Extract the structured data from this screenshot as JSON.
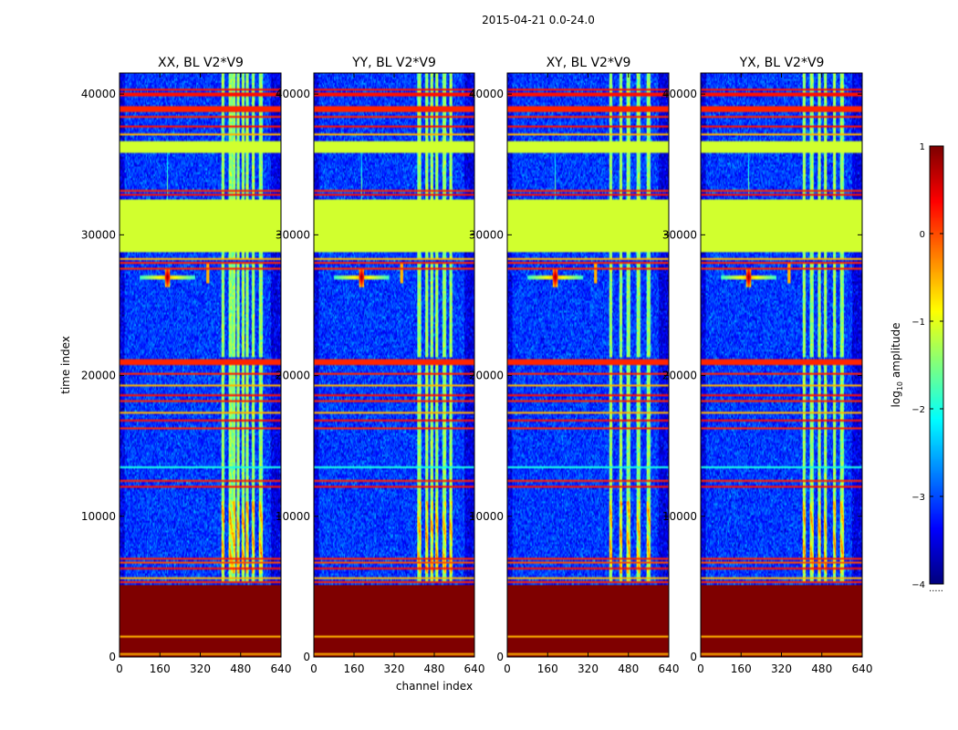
{
  "figure": {
    "suptitle": "2015-04-21 0.0-24.0",
    "xlabel": "channel index",
    "ylabel": "time index"
  },
  "chart_data": [
    {
      "type": "heatmap",
      "title": "XX, BL V2*V9",
      "xlabel": "channel index",
      "ylabel": "time index",
      "xlim": [
        0,
        640
      ],
      "ylim": [
        0,
        41500
      ],
      "xticks": [
        "0",
        "160",
        "320",
        "480",
        "640"
      ],
      "yticks": [
        "0",
        "10000",
        "20000",
        "30000",
        "40000"
      ],
      "strong_channels": [
        410,
        440,
        455,
        470,
        490,
        505,
        530,
        560
      ],
      "ytick_labels_shown": true
    },
    {
      "type": "heatmap",
      "title": "YY, BL V2*V9",
      "xlabel": "channel index",
      "ylabel": "time index",
      "xlim": [
        0,
        640
      ],
      "ylim": [
        0,
        41500
      ],
      "xticks": [
        "0",
        "160",
        "320",
        "480",
        "640"
      ],
      "yticks": [
        "0",
        "10000",
        "20000",
        "30000",
        "40000"
      ],
      "strong_channels": [
        420,
        450,
        470,
        490,
        520,
        545
      ],
      "ytick_labels_shown": true
    },
    {
      "type": "heatmap",
      "title": "XY, BL V2*V9",
      "xlabel": "channel index",
      "ylabel": "time index",
      "xlim": [
        0,
        640
      ],
      "ylim": [
        0,
        41500
      ],
      "xticks": [
        "0",
        "160",
        "320",
        "480",
        "640"
      ],
      "yticks": [
        "0",
        "10000",
        "20000",
        "30000",
        "40000"
      ],
      "strong_channels": [
        410,
        450,
        480,
        520,
        560
      ],
      "ytick_labels_shown": true
    },
    {
      "type": "heatmap",
      "title": "YX, BL V2*V9",
      "xlabel": "channel index",
      "ylabel": "time index",
      "xlim": [
        0,
        640
      ],
      "ylim": [
        0,
        41500
      ],
      "xticks": [
        "0",
        "160",
        "320",
        "480",
        "640"
      ],
      "yticks": [
        "0",
        "10000",
        "20000",
        "30000",
        "40000"
      ],
      "strong_channels": [
        410,
        440,
        470,
        495,
        530,
        560
      ],
      "ytick_labels_shown": true
    }
  ],
  "shared_features": {
    "background_log10": -3.1,
    "flagged_bottom_range": [
      0,
      5100
    ],
    "flagged_bottom_log10": 1.0,
    "bottom_lines": [
      {
        "t": 200,
        "v": -0.5
      },
      {
        "t": 1500,
        "v": -0.5
      }
    ],
    "green_blocks": [
      {
        "t0": 28800,
        "t1": 32500,
        "v": -1.1
      },
      {
        "t0": 35800,
        "t1": 36600,
        "v": -1.1
      }
    ],
    "hline_bands": [
      {
        "t0": 20700,
        "t1": 21200,
        "v": 0.2
      },
      {
        "t0": 38800,
        "t1": 39100,
        "v": 0.2
      },
      {
        "t0": 39900,
        "t1": 40100,
        "v": 0.3
      },
      {
        "t0": 40300,
        "t1": 40400,
        "v": 0.3
      }
    ],
    "hlines": [
      {
        "t": 5300,
        "v": 0.2
      },
      {
        "t": 5600,
        "v": -0.5
      },
      {
        "t": 6300,
        "v": 0.3
      },
      {
        "t": 6700,
        "v": 0.0
      },
      {
        "t": 7000,
        "v": 0.2
      },
      {
        "t": 12100,
        "v": 0.3
      },
      {
        "t": 12500,
        "v": 0.2
      },
      {
        "t": 13500,
        "v": -2.0
      },
      {
        "t": 16300,
        "v": 0.2
      },
      {
        "t": 16800,
        "v": 0.3
      },
      {
        "t": 17400,
        "v": -0.5
      },
      {
        "t": 18200,
        "v": 0.2
      },
      {
        "t": 18600,
        "v": 0.3
      },
      {
        "t": 19300,
        "v": -0.5
      },
      {
        "t": 20100,
        "v": 0.2
      },
      {
        "t": 27600,
        "v": 0.2
      },
      {
        "t": 28000,
        "v": 0.2
      },
      {
        "t": 28300,
        "v": -0.5
      },
      {
        "t": 32800,
        "v": 0.3
      },
      {
        "t": 33100,
        "v": 0.2
      },
      {
        "t": 37200,
        "v": -0.5
      },
      {
        "t": 37700,
        "v": 0.3
      },
      {
        "t": 38400,
        "v": 0.2
      }
    ],
    "rfi_spike": {
      "channel": 190,
      "t_center": 27000,
      "v": 1.0,
      "halo": -0.5
    },
    "rfi_channel": {
      "channel": 350,
      "t0": 26500,
      "t1": 27900,
      "v": -0.5
    },
    "channel_band_gaps": [
      [
        5100,
        5400
      ],
      [
        20700,
        21300
      ],
      [
        28000,
        28400
      ]
    ]
  },
  "colorbar": {
    "label": "log",
    "label_sub": "10",
    "label_rest": " amplitude",
    "vmin": -4,
    "vmax": 1,
    "ticks": [
      "1",
      "0",
      "−1",
      "−2",
      "−3",
      "−4"
    ],
    "dots": "....."
  },
  "colormap_stops": [
    "#00007f",
    "#0000ff",
    "#007fff",
    "#00ffff",
    "#7fff7f",
    "#ffff00",
    "#ff7f00",
    "#ff0000",
    "#7f0000"
  ]
}
